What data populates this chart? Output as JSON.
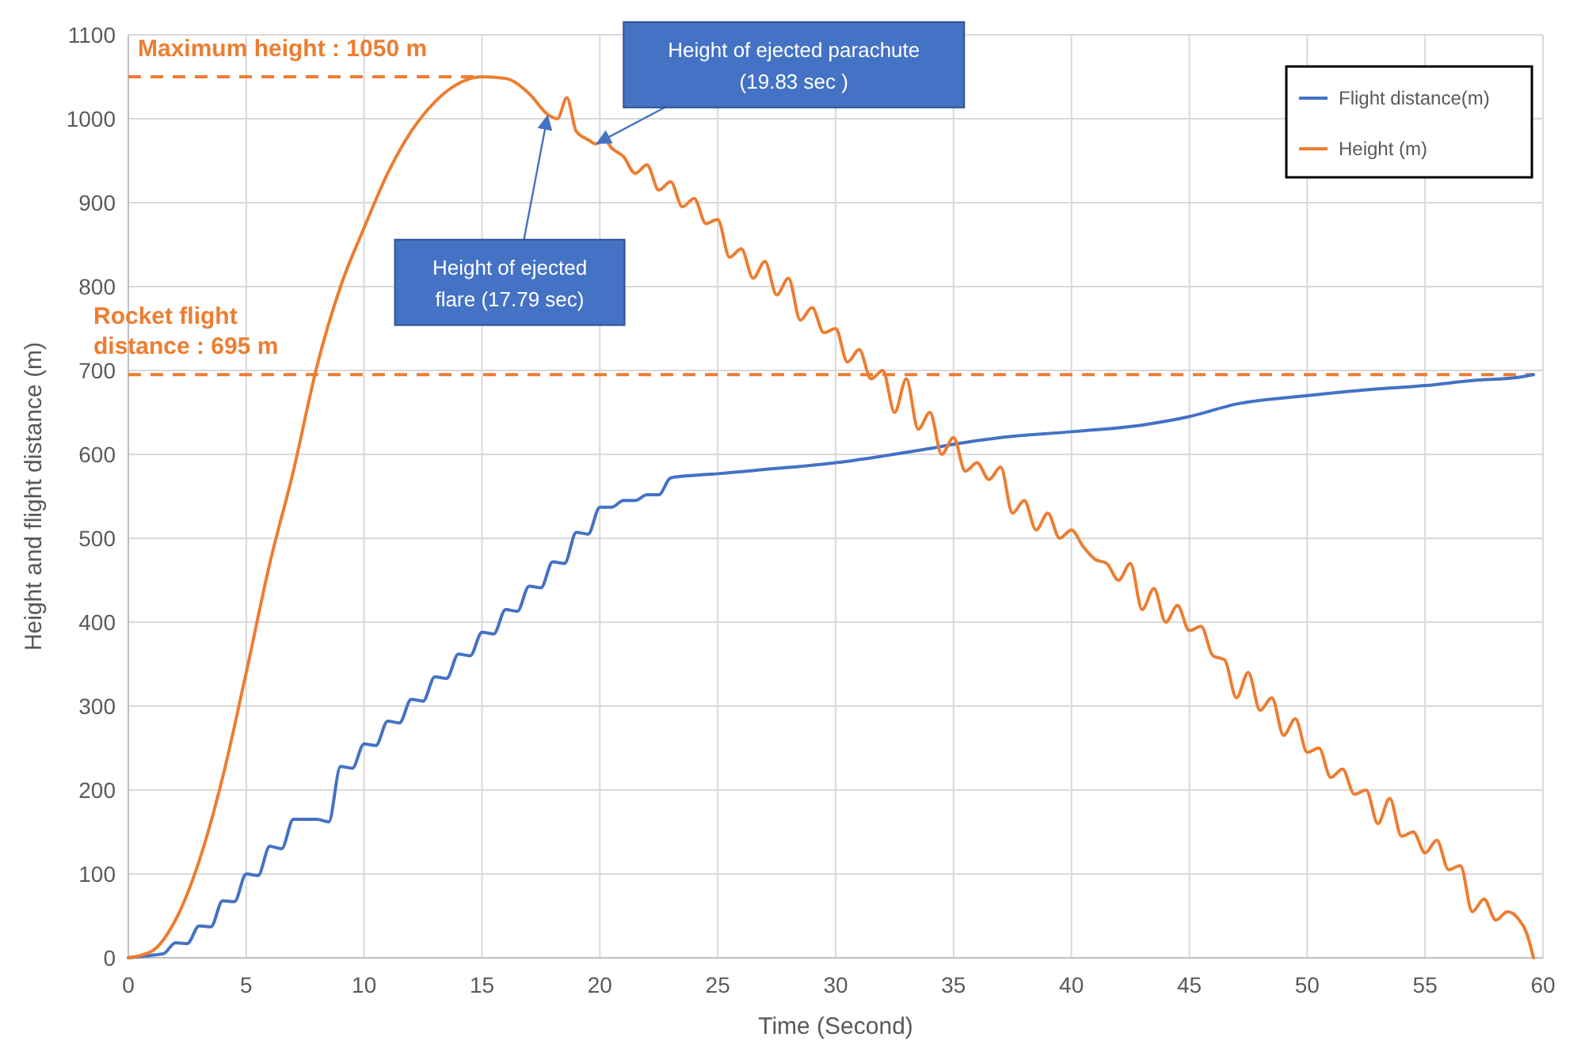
{
  "chart_data": {
    "type": "line",
    "xlabel": "Time (Second)",
    "ylabel": "Height and flight distance (m)",
    "xlim": [
      0,
      60
    ],
    "xticks": [
      0,
      5,
      10,
      15,
      20,
      25,
      30,
      35,
      40,
      45,
      50,
      55,
      60
    ],
    "ylim": [
      0,
      1100
    ],
    "yticks": [
      0,
      100,
      200,
      300,
      400,
      500,
      600,
      700,
      800,
      900,
      1000,
      1100
    ],
    "grid": true,
    "legend": "top right",
    "line_style": "solid",
    "marker": "none",
    "series": [
      {
        "name": "Flight distance(m)",
        "color": "#4472c4",
        "x": [
          0,
          1,
          1.5,
          2,
          2.5,
          3,
          3.5,
          4,
          4.5,
          5,
          5.5,
          6,
          6.5,
          7,
          7.5,
          8,
          8.5,
          9,
          9.5,
          10,
          10.5,
          11,
          11.5,
          12,
          12.5,
          13,
          13.5,
          14,
          14.5,
          15,
          15.5,
          16,
          16.5,
          17,
          17.5,
          18,
          18.5,
          19,
          19.5,
          20,
          20.5,
          21,
          21.5,
          22,
          22.5,
          23,
          24,
          25,
          27,
          30,
          32,
          34,
          35,
          37,
          40,
          43,
          45,
          47,
          50,
          53,
          55,
          57,
          59,
          59.6
        ],
        "values": [
          0,
          3,
          5,
          18,
          17,
          38,
          37,
          68,
          67,
          100,
          98,
          133,
          130,
          165,
          165,
          165,
          162,
          228,
          226,
          255,
          253,
          282,
          280,
          308,
          306,
          335,
          333,
          362,
          360,
          388,
          386,
          415,
          413,
          443,
          441,
          472,
          470,
          507,
          505,
          537,
          537,
          545,
          545,
          552,
          552,
          572,
          575,
          577,
          582,
          590,
          598,
          607,
          612,
          620,
          627,
          635,
          645,
          660,
          670,
          678,
          682,
          688,
          692,
          695
        ]
      },
      {
        "name": "Height (m)",
        "color": "#ed7d31",
        "x": [
          0,
          1,
          2,
          3,
          4,
          5,
          6,
          7,
          8,
          9,
          10,
          11,
          12,
          13,
          14,
          15,
          16,
          17,
          17.79,
          18.2,
          18.6,
          19,
          19.5,
          19.83,
          20.2,
          20.5,
          21,
          21.5,
          22,
          22.5,
          23,
          23.5,
          24,
          24.5,
          25,
          25.5,
          26,
          26.5,
          27,
          27.5,
          28,
          28.5,
          29,
          29.5,
          30,
          30.5,
          31,
          31.5,
          32,
          32.5,
          33,
          33.5,
          34,
          34.5,
          35,
          35.5,
          36,
          36.5,
          37,
          37.5,
          38,
          38.5,
          39,
          39.5,
          40,
          40.5,
          41,
          41.5,
          42,
          42.5,
          43,
          43.5,
          44,
          44.5,
          45,
          45.5,
          46,
          46.5,
          47,
          47.5,
          48,
          48.5,
          49,
          49.5,
          50,
          50.5,
          51,
          51.5,
          52,
          52.5,
          53,
          53.5,
          54,
          54.5,
          55,
          55.5,
          56,
          56.5,
          57,
          57.5,
          58,
          58.5,
          59,
          59.3,
          59.6
        ],
        "values": [
          0,
          8,
          45,
          115,
          215,
          340,
          470,
          580,
          705,
          800,
          870,
          935,
          985,
          1020,
          1042,
          1050,
          1048,
          1030,
          1005,
          1000,
          1025,
          985,
          975,
          970,
          975,
          965,
          955,
          935,
          945,
          915,
          925,
          895,
          905,
          875,
          880,
          835,
          845,
          810,
          830,
          790,
          810,
          760,
          775,
          745,
          750,
          710,
          725,
          690,
          700,
          650,
          690,
          630,
          650,
          600,
          620,
          580,
          590,
          570,
          585,
          530,
          545,
          510,
          530,
          500,
          510,
          490,
          475,
          470,
          450,
          470,
          415,
          440,
          400,
          420,
          390,
          395,
          360,
          355,
          310,
          340,
          295,
          310,
          265,
          285,
          245,
          250,
          215,
          225,
          195,
          200,
          160,
          190,
          145,
          150,
          125,
          140,
          105,
          110,
          55,
          70,
          45,
          55,
          45,
          30,
          0
        ]
      }
    ],
    "ref_lines": [
      {
        "axis": "y",
        "value": 1050,
        "label": "Maximum height : 1050 m",
        "color": "#ed7d31",
        "line_style": "dashed"
      },
      {
        "axis": "y",
        "value": 695,
        "label": "Rocket  flight distance : 695 m",
        "color": "#ed7d31",
        "line_style": "dashed"
      }
    ],
    "annotations": [
      {
        "text": "Height of ejected flare (17.79 sec)",
        "x": 17.79,
        "y": 1005
      },
      {
        "text": "Height of ejected  parachute (19.83 sec )",
        "x": 19.83,
        "y": 970
      }
    ]
  }
}
